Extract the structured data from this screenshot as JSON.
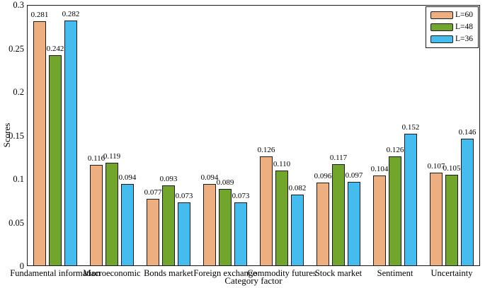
{
  "chart_data": {
    "type": "bar",
    "title": "",
    "xlabel": "Category factor",
    "ylabel": "Scores",
    "ylim": [
      0,
      0.3
    ],
    "yticks": [
      0,
      0.05,
      0.1,
      0.15,
      0.2,
      0.25,
      0.3
    ],
    "ytick_labels": [
      "0",
      "0.05",
      "0.1",
      "0.15",
      "0.2",
      "0.25",
      "0.3"
    ],
    "categories": [
      "Fundamental information",
      "Macroeconomic",
      "Bonds market",
      "Foreign exchange",
      "Commodity futures",
      "Stock market",
      "Sentiment",
      "Uncertainty"
    ],
    "series": [
      {
        "name": "L=60",
        "color": "#EDAE80",
        "values": [
          0.281,
          0.116,
          0.077,
          0.094,
          0.126,
          0.096,
          0.104,
          0.107
        ]
      },
      {
        "name": "L=48",
        "color": "#72A52C",
        "values": [
          0.242,
          0.119,
          0.093,
          0.089,
          0.11,
          0.117,
          0.126,
          0.105
        ]
      },
      {
        "name": "L=36",
        "color": "#45BCEE",
        "values": [
          0.282,
          0.094,
          0.073,
          0.073,
          0.082,
          0.097,
          0.152,
          0.146
        ]
      }
    ],
    "legend_position": "top-right",
    "grid": false,
    "bar_edge_color": "#1a1a1a",
    "data_labels": true,
    "data_label_decimals": 3
  }
}
